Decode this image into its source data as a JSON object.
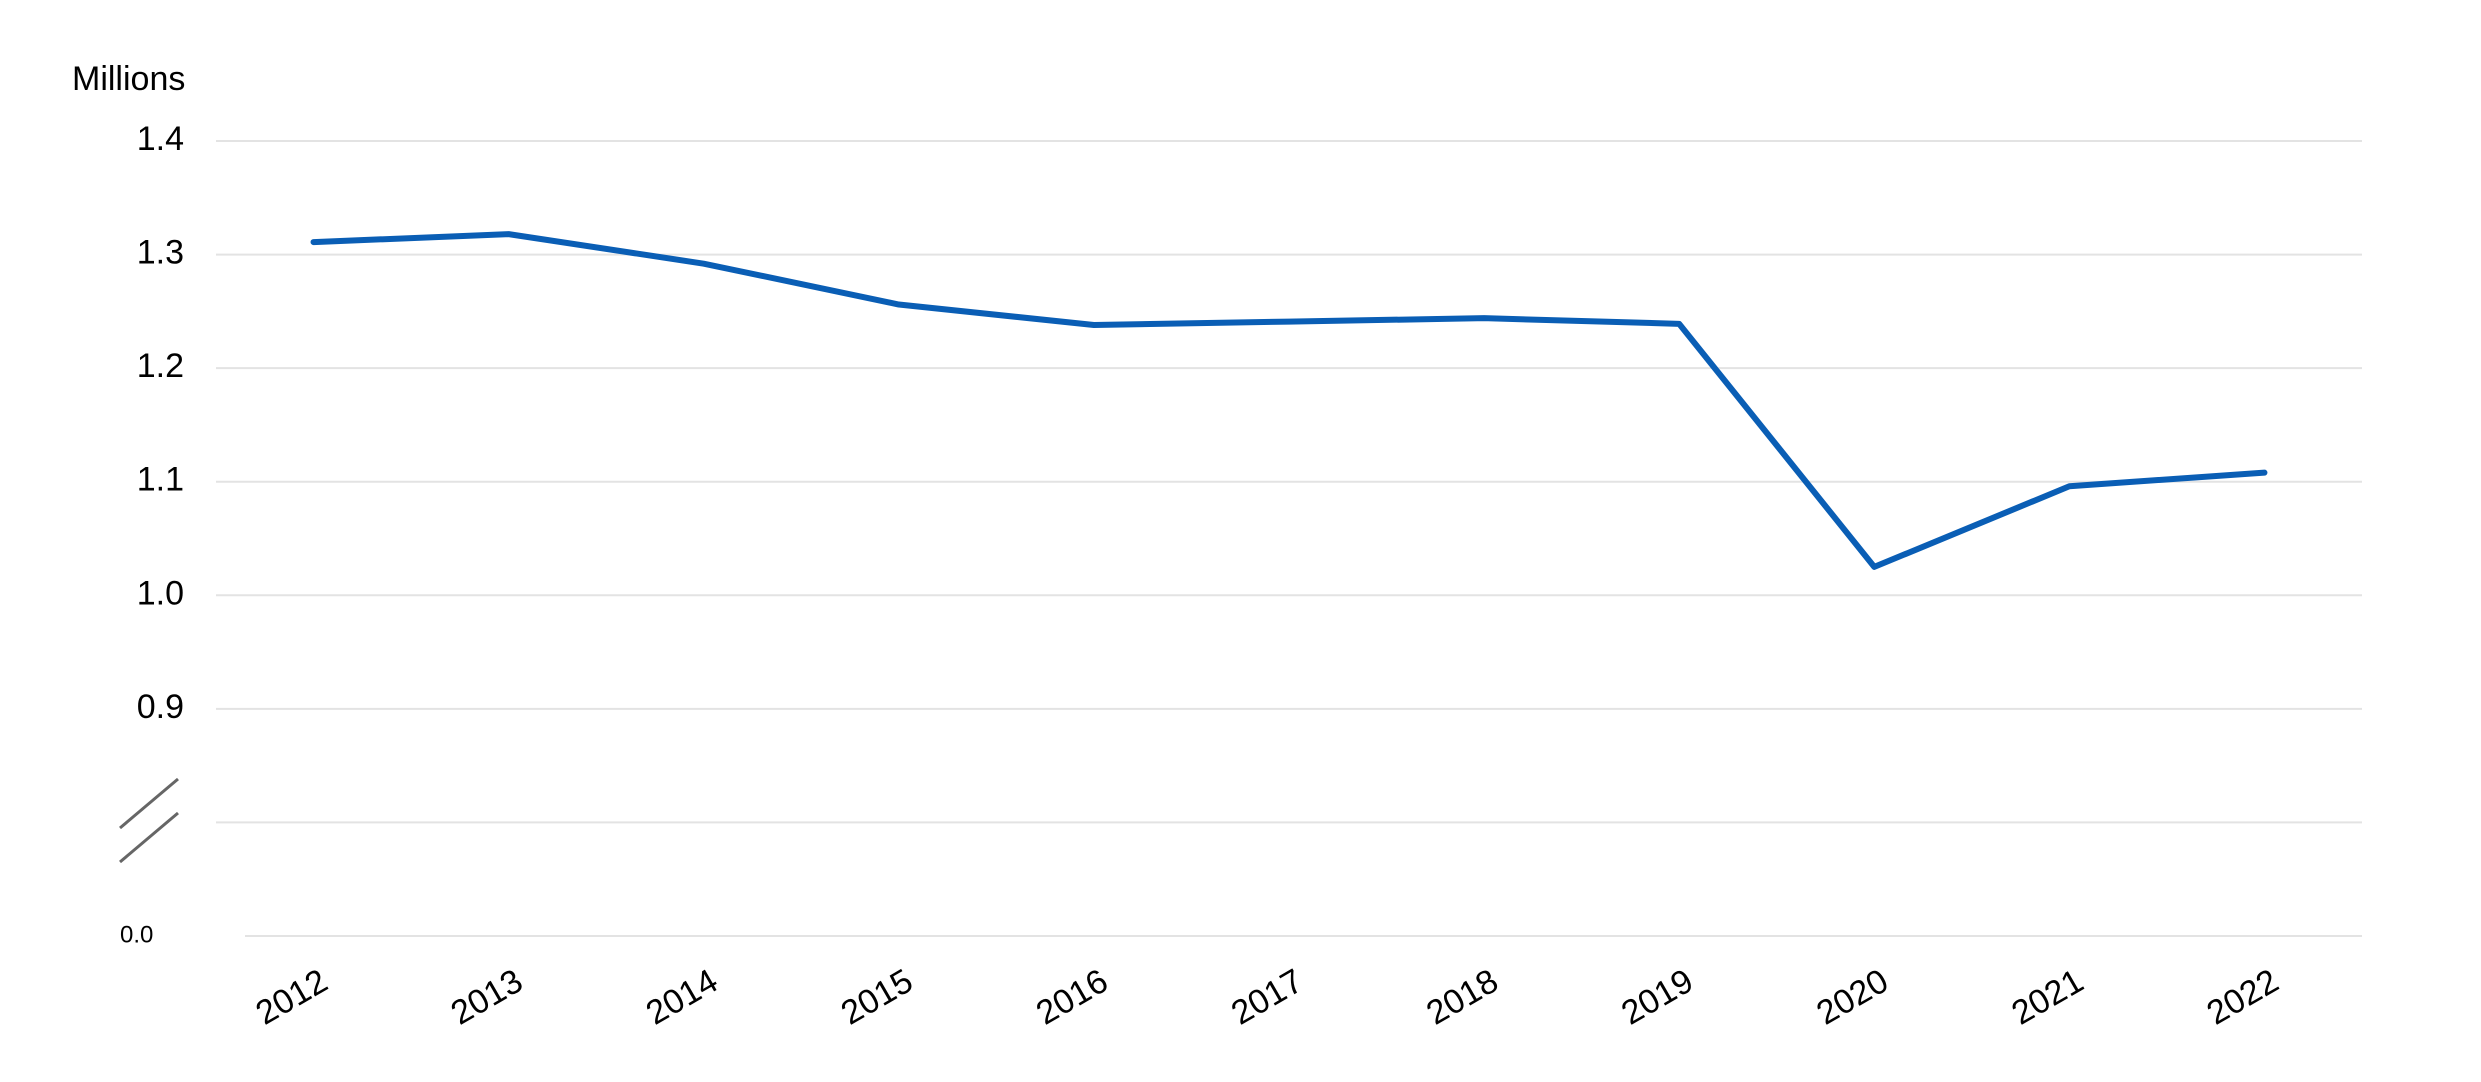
{
  "chart_data": {
    "type": "line",
    "y_label": "Millions",
    "categories": [
      "2012",
      "2013",
      "2014",
      "2015",
      "2016",
      "2017",
      "2018",
      "2019",
      "2020",
      "2021",
      "2022"
    ],
    "series": [
      {
        "color": "#0a5eb5",
        "values": [
          1.311,
          1.318,
          1.292,
          1.256,
          1.238,
          1.241,
          1.244,
          1.239,
          1.025,
          1.096,
          1.108
        ]
      }
    ],
    "ylim": [
      0,
      1.4
    ],
    "yticks": [
      {
        "value": 0,
        "label": "0.0"
      },
      0.9,
      {
        "value": 1,
        "label": "1.0"
      },
      1.1,
      1.2,
      1.3,
      1.4
    ],
    "axis_break": true,
    "grid": true
  }
}
